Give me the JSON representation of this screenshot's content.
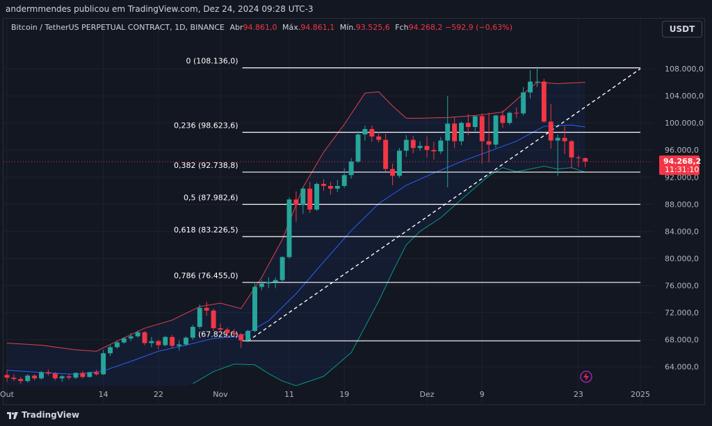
{
  "publisher": "andermmendes publicou em TradingView.com, Dez 24, 2024 09:28 UTC-3",
  "legend": {
    "symbol": "Bitcoin / TetherUS PERPETUAL CONTRACT, 1D, BINANCE",
    "open_label": "Abr",
    "open": "94.861,0",
    "high_label": "Máx.",
    "high": "94.861,1",
    "low_label": "Mín.",
    "low": "93.525,6",
    "close_label": "Fch",
    "close": "94.268,2",
    "change": "−592,9 (−0,63%)"
  },
  "currency_button": "USDT",
  "brand": "TradingView",
  "colors": {
    "up": "#26a69a",
    "down": "#f23645",
    "bb_upper": "#e0424c",
    "bb_mid": "#2962ff",
    "bb_lower": "#089981"
  },
  "chart_data": {
    "type": "candlestick",
    "y_range": [
      61000,
      112000
    ],
    "y_ticks": [
      "108.000,0",
      "104.000,0",
      "100.000,0",
      "96.000,0",
      "92.000,0",
      "88.000,0",
      "84.000,0",
      "80.000,0",
      "76.000,0",
      "72.000,0",
      "68.000,0",
      "64.000,0"
    ],
    "y_tick_values": [
      108000,
      104000,
      100000,
      96000,
      92000,
      88000,
      84000,
      80000,
      76000,
      72000,
      68000,
      64000
    ],
    "x_ticks": [
      {
        "label": "Out",
        "day": 0
      },
      {
        "label": "14",
        "day": 14
      },
      {
        "label": "22",
        "day": 22
      },
      {
        "label": "Nov",
        "day": 31
      },
      {
        "label": "11",
        "day": 41
      },
      {
        "label": "19",
        "day": 49
      },
      {
        "label": "Dez",
        "day": 61
      },
      {
        "label": "9",
        "day": 69
      },
      {
        "label": "23",
        "day": 83
      },
      {
        "label": "2025",
        "day": 92
      }
    ],
    "x_day_range": [
      0,
      93
    ],
    "last_price": {
      "value": 94268.2,
      "label": "94.268,2",
      "countdown": "11:31:10"
    },
    "fib_levels": [
      {
        "ratio": "0",
        "price": 108136.0,
        "label": "0 (108.136,0)"
      },
      {
        "ratio": "0.236",
        "price": 98623.6,
        "label": "0,236 (98.623,6)"
      },
      {
        "ratio": "0.382",
        "price": 92738.8,
        "label": "0,382 (92.738,8)"
      },
      {
        "ratio": "0.5",
        "price": 87982.6,
        "label": "0,5 (87.982,6)"
      },
      {
        "ratio": "0.618",
        "price": 83226.5,
        "label": "0,618 (83.226,5)"
      },
      {
        "ratio": "0.786",
        "price": 76455.0,
        "label": "0,786 (76.455,0)"
      },
      {
        "ratio": "1",
        "price": 67829.0,
        "label": "1 (67.829,0)"
      }
    ],
    "fib_day_range": [
      35,
      92
    ],
    "trendline": {
      "from": [
        35,
        67800
      ],
      "to": [
        92,
        108000
      ]
    },
    "candles": [
      [
        0,
        62800,
        63500,
        61800,
        62400
      ],
      [
        1,
        62400,
        62900,
        61900,
        62200
      ],
      [
        2,
        62200,
        62500,
        61500,
        61900
      ],
      [
        3,
        61900,
        62900,
        61700,
        62700
      ],
      [
        4,
        62700,
        62900,
        62000,
        62300
      ],
      [
        5,
        62300,
        63400,
        62100,
        63200
      ],
      [
        6,
        63200,
        63600,
        62700,
        63000
      ],
      [
        7,
        63000,
        63200,
        62000,
        62300
      ],
      [
        8,
        62300,
        62800,
        61800,
        62600
      ],
      [
        9,
        62600,
        62900,
        62100,
        62400
      ],
      [
        10,
        62400,
        63200,
        62200,
        63100
      ],
      [
        11,
        63100,
        63400,
        62300,
        62500
      ],
      [
        12,
        62500,
        63300,
        62400,
        63200
      ],
      [
        13,
        63200,
        63600,
        62700,
        62900
      ],
      [
        14,
        62900,
        66500,
        62800,
        66000
      ],
      [
        15,
        66000,
        67200,
        65600,
        66900
      ],
      [
        16,
        66900,
        67900,
        66700,
        67600
      ],
      [
        17,
        67600,
        68400,
        67400,
        68200
      ],
      [
        18,
        68200,
        69000,
        67800,
        68500
      ],
      [
        19,
        68500,
        69400,
        68300,
        69100
      ],
      [
        20,
        69100,
        69300,
        67200,
        67500
      ],
      [
        21,
        67500,
        68400,
        66900,
        67800
      ],
      [
        22,
        67800,
        68000,
        66600,
        67200
      ],
      [
        23,
        67200,
        68600,
        67000,
        68400
      ],
      [
        24,
        68400,
        68700,
        66800,
        67100
      ],
      [
        25,
        67100,
        67900,
        66400,
        67300
      ],
      [
        26,
        67300,
        68500,
        67100,
        68300
      ],
      [
        27,
        68300,
        70200,
        68000,
        69900
      ],
      [
        28,
        69900,
        73200,
        69600,
        72700
      ],
      [
        29,
        72700,
        73600,
        71500,
        72300
      ],
      [
        30,
        72300,
        72600,
        69300,
        69700
      ],
      [
        31,
        69700,
        70400,
        69000,
        69500
      ],
      [
        32,
        69500,
        69800,
        68300,
        69000
      ],
      [
        33,
        69000,
        69600,
        68500,
        68800
      ],
      [
        34,
        68800,
        69000,
        66800,
        67900
      ],
      [
        35,
        67900,
        69500,
        67600,
        69300
      ],
      [
        36,
        69300,
        76500,
        69100,
        75800
      ],
      [
        37,
        75800,
        76800,
        75300,
        76300
      ],
      [
        38,
        76300,
        77200,
        75600,
        76500
      ],
      [
        39,
        76500,
        77200,
        75600,
        76800
      ],
      [
        40,
        76800,
        80300,
        76500,
        80200
      ],
      [
        41,
        80200,
        89000,
        80000,
        88700
      ],
      [
        42,
        88700,
        89900,
        85400,
        87900
      ],
      [
        43,
        87900,
        90500,
        86600,
        90300
      ],
      [
        44,
        90300,
        91300,
        86700,
        87200
      ],
      [
        45,
        87200,
        91200,
        87000,
        91000
      ],
      [
        46,
        91000,
        91700,
        90000,
        90700
      ],
      [
        47,
        90700,
        91300,
        89400,
        90300
      ],
      [
        48,
        90300,
        91600,
        89800,
        90700
      ],
      [
        49,
        90700,
        93300,
        90400,
        92300
      ],
      [
        50,
        92300,
        94800,
        91800,
        94300
      ],
      [
        51,
        94300,
        98800,
        94100,
        98300
      ],
      [
        52,
        98300,
        99600,
        97400,
        99100
      ],
      [
        53,
        99100,
        99600,
        97200,
        98000
      ],
      [
        54,
        98000,
        98700,
        97100,
        97500
      ],
      [
        55,
        97500,
        98400,
        92800,
        93200
      ],
      [
        56,
        93200,
        94000,
        90800,
        92200
      ],
      [
        57,
        92200,
        96300,
        91900,
        95900
      ],
      [
        58,
        95900,
        98200,
        95000,
        97500
      ],
      [
        59,
        97500,
        98100,
        95500,
        96300
      ],
      [
        60,
        96300,
        97300,
        95900,
        96600
      ],
      [
        61,
        96600,
        98000,
        94900,
        96000
      ],
      [
        62,
        96000,
        97200,
        94600,
        95800
      ],
      [
        63,
        95800,
        97900,
        95400,
        97400
      ],
      [
        64,
        97400,
        104000,
        90500,
        99900
      ],
      [
        65,
        99900,
        100800,
        96300,
        97300
      ],
      [
        66,
        97300,
        100200,
        96700,
        100000
      ],
      [
        67,
        100000,
        101300,
        98200,
        99400
      ],
      [
        68,
        99400,
        101000,
        98800,
        101000
      ],
      [
        69,
        101000,
        101400,
        94000,
        97300
      ],
      [
        70,
        97300,
        101500,
        94200,
        96800
      ],
      [
        71,
        96800,
        101200,
        96300,
        101100
      ],
      [
        72,
        101100,
        101900,
        99300,
        100000
      ],
      [
        73,
        100000,
        101700,
        99700,
        101500
      ],
      [
        74,
        101500,
        102300,
        100700,
        101400
      ],
      [
        75,
        101400,
        105300,
        101100,
        104500
      ],
      [
        76,
        104500,
        107800,
        103600,
        106100
      ],
      [
        77,
        106100,
        108300,
        105300,
        106100
      ],
      [
        78,
        106100,
        106500,
        100000,
        100200
      ],
      [
        79,
        100200,
        102800,
        96200,
        97400
      ],
      [
        80,
        97400,
        98300,
        92200,
        97800
      ],
      [
        81,
        97800,
        99500,
        95400,
        97300
      ],
      [
        82,
        97300,
        97500,
        93300,
        94900
      ],
      [
        83,
        94900,
        95200,
        93500,
        94800
      ],
      [
        84,
        94800,
        94900,
        93500,
        94300
      ]
    ],
    "bollinger": {
      "upper": [
        [
          0,
          67500
        ],
        [
          5,
          67200
        ],
        [
          10,
          66500
        ],
        [
          13,
          66300
        ],
        [
          16,
          67800
        ],
        [
          20,
          69700
        ],
        [
          24,
          70900
        ],
        [
          28,
          72900
        ],
        [
          31,
          73400
        ],
        [
          34,
          72600
        ],
        [
          37,
          77200
        ],
        [
          40,
          82800
        ],
        [
          43,
          90500
        ],
        [
          46,
          95700
        ],
        [
          49,
          99800
        ],
        [
          52,
          104400
        ],
        [
          54,
          104600
        ],
        [
          56,
          102500
        ],
        [
          58,
          100700
        ],
        [
          60,
          100700
        ],
        [
          64,
          100800
        ],
        [
          68,
          101100
        ],
        [
          72,
          101600
        ],
        [
          75,
          104300
        ],
        [
          77,
          106000
        ],
        [
          80,
          105800
        ],
        [
          84,
          106000
        ]
      ],
      "middle": [
        [
          0,
          63500
        ],
        [
          6,
          63100
        ],
        [
          10,
          62900
        ],
        [
          14,
          63400
        ],
        [
          18,
          64800
        ],
        [
          22,
          66300
        ],
        [
          26,
          67200
        ],
        [
          30,
          68200
        ],
        [
          34,
          68500
        ],
        [
          38,
          70800
        ],
        [
          42,
          74800
        ],
        [
          46,
          79500
        ],
        [
          50,
          84100
        ],
        [
          54,
          88100
        ],
        [
          58,
          90800
        ],
        [
          62,
          92600
        ],
        [
          66,
          94300
        ],
        [
          70,
          95800
        ],
        [
          74,
          97300
        ],
        [
          78,
          99500
        ],
        [
          82,
          99700
        ],
        [
          84,
          99400
        ]
      ],
      "lower": [
        [
          27,
          61500
        ],
        [
          30,
          63300
        ],
        [
          33,
          64400
        ],
        [
          36,
          64300
        ],
        [
          38,
          63000
        ],
        [
          40,
          61900
        ],
        [
          42,
          61200
        ],
        [
          46,
          62600
        ],
        [
          50,
          66100
        ],
        [
          54,
          73700
        ],
        [
          56,
          78000
        ],
        [
          58,
          82000
        ],
        [
          60,
          84000
        ],
        [
          63,
          86000
        ],
        [
          66,
          88700
        ],
        [
          70,
          92200
        ],
        [
          72,
          93400
        ],
        [
          74,
          92800
        ],
        [
          76,
          93200
        ],
        [
          78,
          93600
        ],
        [
          80,
          93200
        ],
        [
          82,
          93400
        ],
        [
          84,
          92700
        ]
      ]
    },
    "fib_fill": {
      "from": [
        35,
        67829
      ],
      "to": [
        92,
        108136
      ]
    }
  }
}
